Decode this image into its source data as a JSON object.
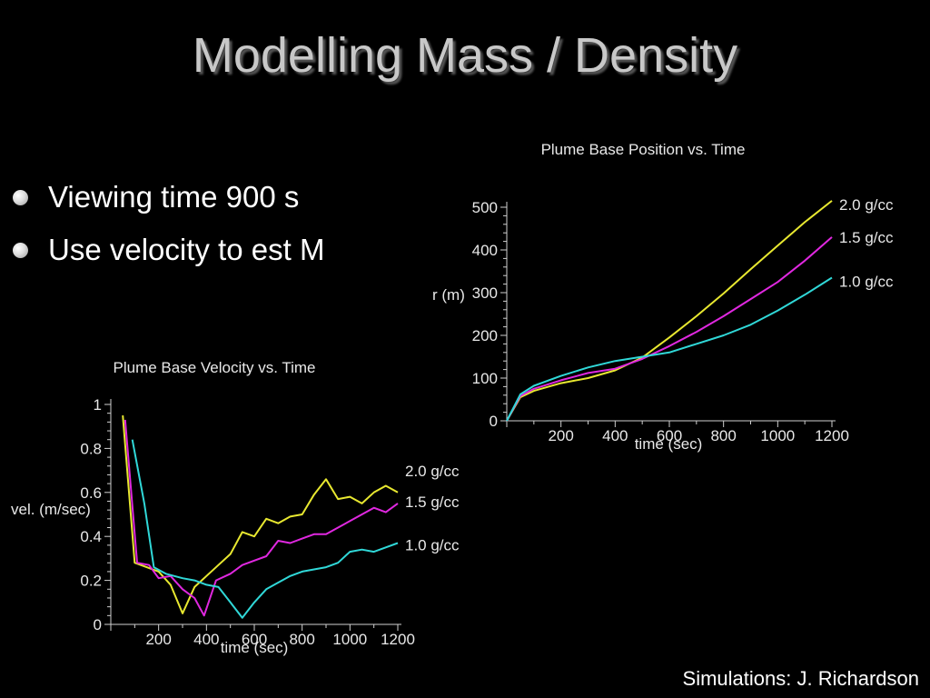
{
  "slide": {
    "title": "Modelling Mass / Density",
    "bullets": [
      "Viewing time 900 s",
      "Use velocity to est M"
    ],
    "credit": "Simulations:  J. Richardson"
  },
  "chart_data": [
    {
      "type": "line",
      "title": "Plume Base Position vs. Time",
      "xlabel": "time (sec)",
      "ylabel": "r (m)",
      "xlim": [
        0,
        1200
      ],
      "ylim": [
        0,
        500
      ],
      "xticks": [
        "200",
        "400",
        "600",
        "800",
        "1000",
        "1200"
      ],
      "yticks": [
        "0",
        "100",
        "200",
        "300",
        "400",
        "500"
      ],
      "grid": false,
      "legend": "inline-right",
      "series": [
        {
          "name": "2.0 g/cc",
          "color": "#e8e830",
          "x": [
            0,
            50,
            100,
            200,
            300,
            400,
            500,
            600,
            700,
            800,
            900,
            1000,
            1100,
            1200
          ],
          "y": [
            0,
            55,
            70,
            88,
            100,
            118,
            148,
            195,
            245,
            298,
            355,
            410,
            465,
            515
          ]
        },
        {
          "name": "1.5 g/cc",
          "color": "#e028e0",
          "x": [
            0,
            50,
            100,
            200,
            300,
            400,
            500,
            600,
            700,
            800,
            900,
            1000,
            1100,
            1200
          ],
          "y": [
            0,
            58,
            75,
            95,
            112,
            122,
            145,
            175,
            208,
            245,
            285,
            325,
            375,
            430
          ]
        },
        {
          "name": "1.0 g/cc",
          "color": "#30d8d8",
          "x": [
            0,
            50,
            100,
            200,
            300,
            400,
            500,
            600,
            700,
            800,
            900,
            1000,
            1100,
            1200
          ],
          "y": [
            0,
            62,
            82,
            105,
            125,
            140,
            150,
            160,
            180,
            200,
            225,
            258,
            295,
            335
          ]
        }
      ]
    },
    {
      "type": "line",
      "title": "Plume Base Velocity vs. Time",
      "xlabel": "time (sec)",
      "ylabel": "vel. (m/sec)",
      "xlim": [
        0,
        1200
      ],
      "ylim": [
        0,
        1
      ],
      "xticks": [
        "200",
        "400",
        "600",
        "800",
        "1000",
        "1200"
      ],
      "yticks": [
        "0",
        "0.2",
        "0.4",
        "0.6",
        "0.8",
        "1"
      ],
      "grid": false,
      "legend": "inline-right",
      "series": [
        {
          "name": "2.0 g/cc",
          "color": "#e8e830",
          "x": [
            50,
            100,
            150,
            200,
            250,
            300,
            350,
            400,
            450,
            500,
            550,
            600,
            650,
            700,
            750,
            800,
            850,
            900,
            950,
            1000,
            1050,
            1100,
            1150,
            1200
          ],
          "y": [
            0.95,
            0.28,
            0.26,
            0.24,
            0.18,
            0.05,
            0.17,
            0.22,
            0.27,
            0.32,
            0.42,
            0.4,
            0.48,
            0.46,
            0.49,
            0.5,
            0.59,
            0.66,
            0.57,
            0.58,
            0.55,
            0.6,
            0.63,
            0.6
          ]
        },
        {
          "name": "1.5 g/cc",
          "color": "#e028e0",
          "x": [
            60,
            110,
            160,
            200,
            250,
            300,
            350,
            390,
            440,
            500,
            550,
            600,
            650,
            700,
            750,
            800,
            850,
            900,
            950,
            1000,
            1050,
            1100,
            1150,
            1200
          ],
          "y": [
            0.93,
            0.28,
            0.27,
            0.21,
            0.22,
            0.16,
            0.12,
            0.04,
            0.2,
            0.23,
            0.27,
            0.29,
            0.31,
            0.38,
            0.37,
            0.39,
            0.41,
            0.41,
            0.44,
            0.47,
            0.5,
            0.53,
            0.51,
            0.55
          ]
        },
        {
          "name": "1.0 g/cc",
          "color": "#30d8d8",
          "x": [
            90,
            140,
            180,
            230,
            300,
            350,
            400,
            450,
            500,
            550,
            600,
            650,
            700,
            750,
            800,
            850,
            900,
            950,
            1000,
            1050,
            1100,
            1150,
            1200
          ],
          "y": [
            0.84,
            0.55,
            0.26,
            0.23,
            0.21,
            0.2,
            0.18,
            0.17,
            0.1,
            0.03,
            0.1,
            0.16,
            0.19,
            0.22,
            0.24,
            0.25,
            0.26,
            0.28,
            0.33,
            0.34,
            0.33,
            0.35,
            0.37
          ]
        }
      ]
    }
  ]
}
